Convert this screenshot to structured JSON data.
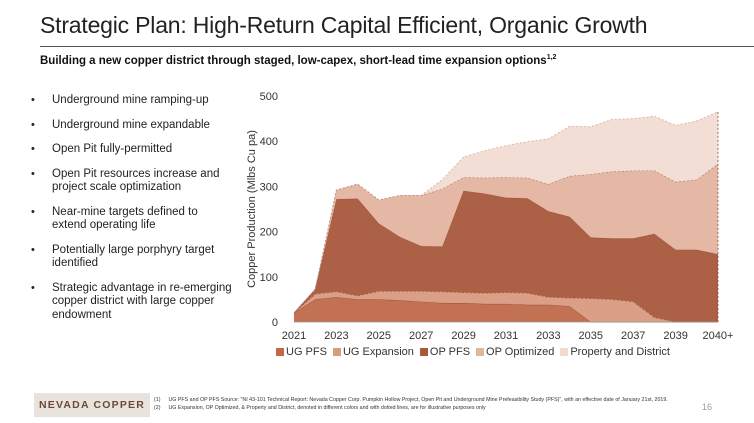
{
  "slide": {
    "title": "Strategic Plan: High-Return Capital Efficient, Organic Growth",
    "subtitle": "Building a new copper district through staged, low-capex, short-lead time expansion options",
    "subtitle_sup": "1,2",
    "page_number": "16"
  },
  "bullets": [
    "Underground mine ramping-up",
    "Underground mine expandable",
    "Open Pit fully-permitted",
    "Open Pit resources increase and project scale optimization",
    "Near-mine targets defined to extend operating life",
    "Potentially large porphyry target identified",
    "Strategic advantage in re-emerging copper district with large copper endowment"
  ],
  "logo": {
    "text": "NEVADA COPPER"
  },
  "footnotes": [
    {
      "num": "(1)",
      "text": "UG PFS and OP PFS Source: \"NI 43-101 Technical Report: Nevada Copper Corp. Pumpkin Hollow Project, Open Pit and Underground Mine Prefeasibility Study (PFS)\", with an effective date of January 21st, 2019."
    },
    {
      "num": "(2)",
      "text": "UG Expansion, OP Optimized, & Property and District, denoted in different colors and with dotted lines, are for illustrative purposes only"
    }
  ],
  "chart_data": {
    "type": "area",
    "stacked": true,
    "x": [
      "2021",
      "2022",
      "2023",
      "2024",
      "2025",
      "2026",
      "2027",
      "2028",
      "2029",
      "2030",
      "2031",
      "2032",
      "2033",
      "2034",
      "2035",
      "2036",
      "2037",
      "2038",
      "2039",
      "2040",
      "2040+"
    ],
    "x_tick_labels": [
      "2021",
      "2023",
      "2025",
      "2027",
      "2029",
      "2031",
      "2033",
      "2035",
      "2037",
      "2039",
      "2040+"
    ],
    "ylabel": "Copper Production (Mlbs Cu pa)",
    "ylim": [
      0,
      500
    ],
    "y_ticks": [
      0,
      100,
      200,
      300,
      400,
      500
    ],
    "grid": false,
    "legend_position": "bottom",
    "series": [
      {
        "name": "UG PFS",
        "color": "#c0694a",
        "values": [
          20,
          50,
          55,
          50,
          50,
          48,
          45,
          42,
          42,
          40,
          40,
          38,
          38,
          35,
          0,
          0,
          0,
          0,
          0,
          0,
          0
        ]
      },
      {
        "name": "UG Expansion",
        "color": "#d89a80",
        "values": [
          0,
          12,
          12,
          8,
          18,
          20,
          23,
          25,
          23,
          24,
          25,
          26,
          17,
          18,
          52,
          50,
          45,
          10,
          0,
          0,
          0
        ]
      },
      {
        "name": "OP PFS",
        "color": "#a8583c",
        "values": [
          0,
          10,
          205,
          215,
          150,
          120,
          100,
          100,
          225,
          220,
          210,
          210,
          190,
          180,
          135,
          135,
          140,
          185,
          160,
          160,
          150
        ]
      },
      {
        "name": "OP Optimized",
        "color": "#e3b4a0",
        "values": [
          0,
          0,
          20,
          32,
          52,
          92,
          112,
          128,
          30,
          35,
          45,
          45,
          60,
          90,
          140,
          148,
          150,
          140,
          150,
          155,
          200
        ]
      },
      {
        "name": "Property and District",
        "color": "#f1dcd2",
        "values": [
          0,
          0,
          0,
          0,
          0,
          0,
          0,
          20,
          45,
          60,
          70,
          80,
          100,
          110,
          105,
          115,
          115,
          120,
          125,
          130,
          115
        ]
      }
    ]
  }
}
